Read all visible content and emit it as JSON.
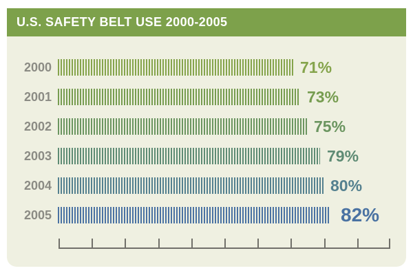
{
  "header": {
    "title": "U.S. SAFETY BELT USE 2000-2005",
    "bg_color": "#7da14b",
    "text_color": "#ffffff"
  },
  "card": {
    "bg_color": "#eff0e1"
  },
  "chart_data": {
    "type": "bar",
    "orientation": "horizontal",
    "bar_style": "striped-vertical-lines",
    "title": "U.S. SAFETY BELT USE 2000-2005",
    "categories": [
      "2000",
      "2001",
      "2002",
      "2003",
      "2004",
      "2005"
    ],
    "values": [
      71,
      73,
      75,
      79,
      80,
      82
    ],
    "value_labels": [
      "71%",
      "73%",
      "75%",
      "79%",
      "80%",
      "82%"
    ],
    "bar_colors": [
      "#85a44c",
      "#769c50",
      "#6b9560",
      "#5e8b74",
      "#54808f",
      "#4a72a2"
    ],
    "emphasized_index": 5,
    "xlim": [
      0,
      100
    ],
    "x_tick_interval": 10,
    "grid": false,
    "legend": false,
    "xlabel": "",
    "ylabel": "",
    "year_label_color": "#8b8b84",
    "axis_color": "#71706a"
  }
}
